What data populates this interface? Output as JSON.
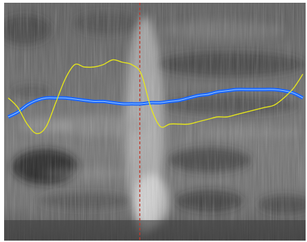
{
  "view": {
    "type": "spectrogram",
    "colormap": "grayscale",
    "background": "#ffffff",
    "cursor": {
      "color": "#c0392b",
      "style": "dashed",
      "time_fraction": 0.45
    }
  },
  "overlay_tracks": [
    {
      "name": "",
      "color": "#1a66ff",
      "style": "double-line",
      "samples": [
        0.52,
        0.54,
        0.57,
        0.59,
        0.6,
        0.6,
        0.6,
        0.595,
        0.59,
        0.585,
        0.585,
        0.58,
        0.575,
        0.575,
        0.575,
        0.58,
        0.58,
        0.585,
        0.59,
        0.6,
        0.61,
        0.615,
        0.625,
        0.63,
        0.635,
        0.635,
        0.635,
        0.635,
        0.635,
        0.63,
        0.62,
        0.6
      ]
    },
    {
      "name": "",
      "color": "#e6e61a",
      "style": "single-line",
      "samples": [
        0.6,
        0.56,
        0.49,
        0.45,
        0.48,
        0.58,
        0.68,
        0.74,
        0.73,
        0.73,
        0.74,
        0.76,
        0.75,
        0.74,
        0.7,
        0.56,
        0.48,
        0.49,
        0.49,
        0.49,
        0.5,
        0.51,
        0.52,
        0.52,
        0.53,
        0.54,
        0.55,
        0.56,
        0.57,
        0.6,
        0.64,
        0.7
      ]
    }
  ]
}
